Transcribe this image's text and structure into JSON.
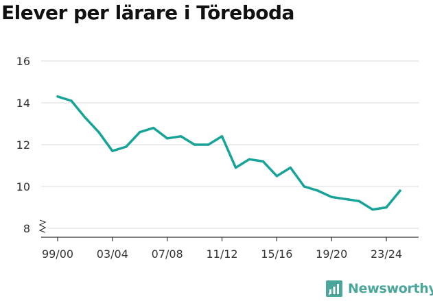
{
  "title": "Elever per lärare i Töreboda",
  "brand": {
    "name": "Newsworthy",
    "icon": "newsworthy-logo-icon",
    "color": "#4aa69a"
  },
  "chart_data": {
    "type": "line",
    "title": "Elever per lärare i Töreboda",
    "xlabel": "",
    "ylabel": "",
    "x": [
      "99/00",
      "00/01",
      "01/02",
      "02/03",
      "03/04",
      "04/05",
      "05/06",
      "06/07",
      "07/08",
      "08/09",
      "09/10",
      "10/11",
      "11/12",
      "12/13",
      "13/14",
      "14/15",
      "15/16",
      "16/17",
      "17/18",
      "18/19",
      "19/20",
      "20/21",
      "21/22",
      "22/23",
      "23/24",
      "24/25"
    ],
    "x_tick_labels": [
      "99/00",
      "03/04",
      "07/08",
      "11/12",
      "15/16",
      "19/20",
      "23/24"
    ],
    "y_ticks": [
      8,
      10,
      12,
      14,
      16
    ],
    "ylim": [
      8,
      16
    ],
    "y_axis_break": true,
    "grid": true,
    "line_color": "#17a398",
    "series": [
      {
        "values": [
          14.3,
          14.1,
          13.3,
          12.6,
          11.7,
          11.9,
          12.6,
          12.8,
          12.3,
          12.4,
          12.0,
          12.0,
          12.4,
          10.9,
          11.3,
          11.2,
          10.5,
          10.9,
          10.0,
          9.8,
          9.5,
          9.4,
          9.3,
          8.9,
          9.0,
          9.8
        ]
      }
    ]
  }
}
